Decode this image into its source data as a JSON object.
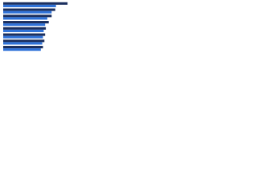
{
  "chart_data": {
    "type": "hbar",
    "categories": [
      null,
      null,
      null,
      null,
      null,
      null,
      null,
      null
    ],
    "series": [
      {
        "color": "#1b2f5e",
        "values": [
          89,
          72,
          67,
          63,
          59,
          58,
          57,
          55
        ]
      },
      {
        "color": "#2f72d8",
        "values": [
          73,
          67,
          61,
          58,
          56,
          55,
          54,
          52
        ]
      }
    ],
    "xlim": [
      0,
      100
    ]
  }
}
